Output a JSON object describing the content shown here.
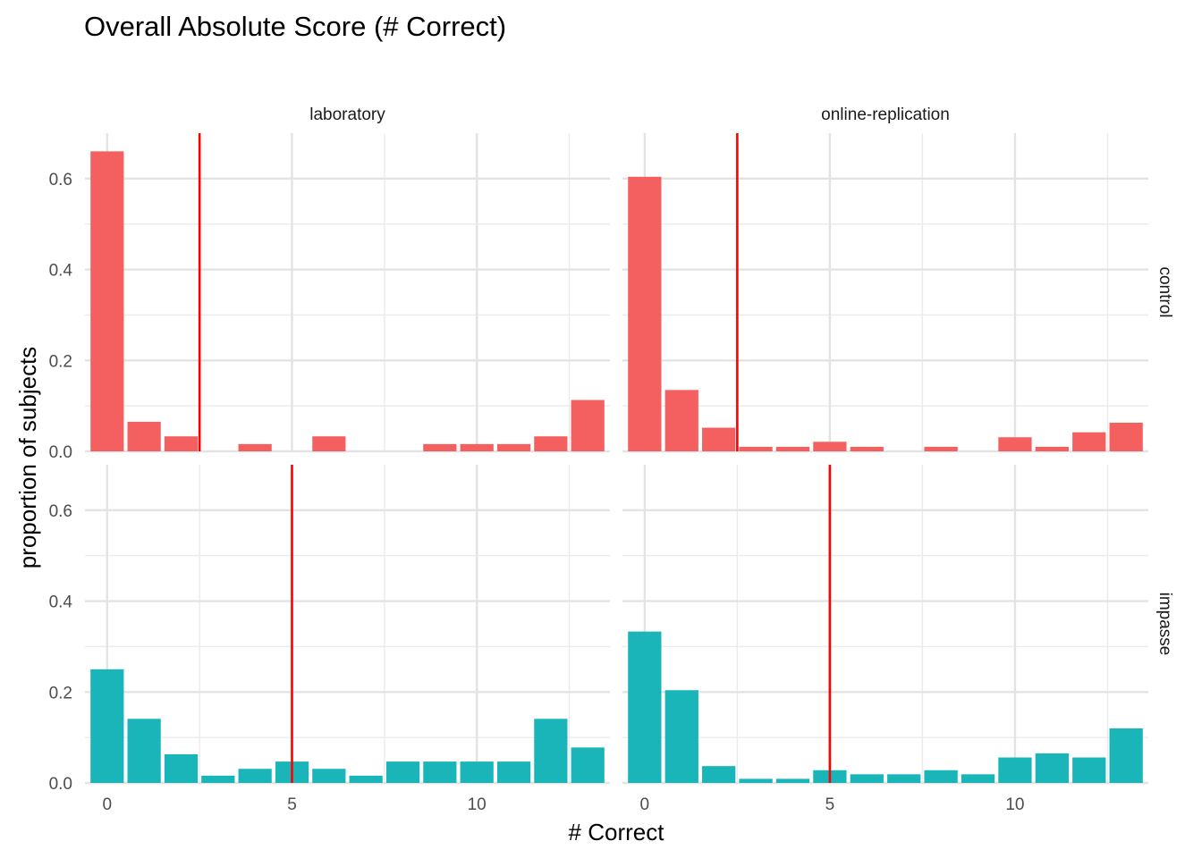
{
  "chart_data": {
    "type": "bar",
    "title": "Overall Absolute Score (# Correct)",
    "xlabel": "# Correct",
    "ylabel": "proportion of subjects",
    "xlim": [
      -0.6,
      13.6
    ],
    "ylim": [
      0,
      0.7
    ],
    "x_ticks": [
      0,
      5,
      10
    ],
    "y_ticks": [
      0.0,
      0.2,
      0.4,
      0.6
    ],
    "x_tick_labels": [
      "0",
      "5",
      "10"
    ],
    "y_tick_labels": [
      "0.0",
      "0.2",
      "0.4",
      "0.6"
    ],
    "grid": true,
    "columns": [
      "laboratory",
      "online-replication"
    ],
    "rows": [
      "control",
      "impasse"
    ],
    "row_colors": {
      "control": "#F46060",
      "impasse": "#19B5B9"
    },
    "vline_color": "#FF0000",
    "panels": [
      {
        "column": "laboratory",
        "row": "control",
        "vline": 2.5,
        "x": [
          0,
          1,
          2,
          4,
          6,
          9,
          10,
          11,
          12,
          13
        ],
        "values": [
          0.66,
          0.065,
          0.033,
          0.016,
          0.033,
          0.016,
          0.016,
          0.016,
          0.033,
          0.113
        ]
      },
      {
        "column": "online-replication",
        "row": "control",
        "vline": 2.5,
        "x": [
          0,
          1,
          2,
          3,
          4,
          5,
          6,
          8,
          10,
          11,
          12,
          13
        ],
        "values": [
          0.604,
          0.135,
          0.052,
          0.01,
          0.01,
          0.021,
          0.01,
          0.01,
          0.031,
          0.01,
          0.042,
          0.063
        ]
      },
      {
        "column": "laboratory",
        "row": "impasse",
        "vline": 5,
        "x": [
          0,
          1,
          2,
          3,
          4,
          5,
          6,
          7,
          8,
          9,
          10,
          11,
          12,
          13
        ],
        "values": [
          0.25,
          0.141,
          0.063,
          0.016,
          0.031,
          0.047,
          0.031,
          0.016,
          0.047,
          0.047,
          0.047,
          0.047,
          0.141,
          0.078
        ]
      },
      {
        "column": "online-replication",
        "row": "impasse",
        "vline": 5,
        "x": [
          0,
          1,
          2,
          3,
          4,
          5,
          6,
          7,
          8,
          9,
          10,
          11,
          12,
          13
        ],
        "values": [
          0.333,
          0.204,
          0.037,
          0.009,
          0.009,
          0.028,
          0.019,
          0.019,
          0.028,
          0.019,
          0.056,
          0.065,
          0.056,
          0.12
        ]
      }
    ]
  }
}
